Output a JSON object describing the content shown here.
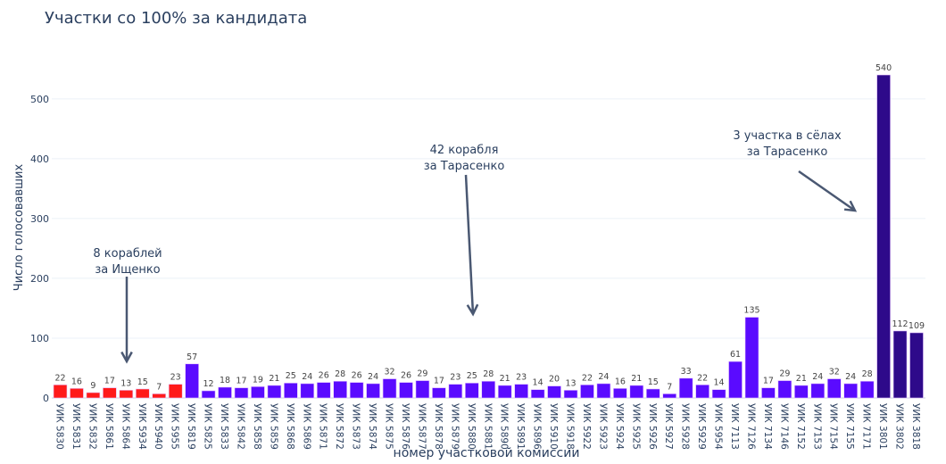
{
  "chart_data": {
    "type": "bar",
    "title": "Участки со 100% за кандидата",
    "xlabel": "номер участковой комиссии",
    "ylabel": "Число голосовавших",
    "ylim": [
      0,
      540
    ],
    "yticks": [
      0,
      100,
      200,
      300,
      400,
      500
    ],
    "grid": true,
    "colors": {
      "Ищенко": "#ff1a1a",
      "Тарасенко": "#5a0bff",
      "Тарасенко (сёла)": "#2e0a8a"
    },
    "categories": [
      "УИК 5830",
      "УИК 5831",
      "УИК 5832",
      "УИК 5861",
      "УИК 5864",
      "УИК 5934",
      "УИК 5940",
      "УИК 5955",
      "УИК 5819",
      "УИК 5825",
      "УИК 5833",
      "УИК 5842",
      "УИК 5858",
      "УИК 5859",
      "УИК 5868",
      "УИК 5869",
      "УИК 5871",
      "УИК 5872",
      "УИК 5873",
      "УИК 5874",
      "УИК 5875",
      "УИК 5876",
      "УИК 5877",
      "УИК 5878",
      "УИК 5879",
      "УИК 5880",
      "УИК 5881",
      "УИК 5890",
      "УИК 5891",
      "УИК 5896",
      "УИК 5910",
      "УИК 5918",
      "УИК 5922",
      "УИК 5923",
      "УИК 5924",
      "УИК 5925",
      "УИК 5926",
      "УИК 5927",
      "УИК 5928",
      "УИК 5929",
      "УИК 5954",
      "УИК 7113",
      "УИК 7126",
      "УИК 7134",
      "УИК 7146",
      "УИК 7152",
      "УИК 7153",
      "УИК 7154",
      "УИК 7155",
      "УИК 7171",
      "УИК 3801",
      "УИК 3802",
      "УИК 3818"
    ],
    "values": [
      22,
      16,
      9,
      17,
      13,
      15,
      7,
      23,
      57,
      12,
      18,
      17,
      19,
      21,
      25,
      24,
      26,
      28,
      26,
      24,
      32,
      26,
      29,
      17,
      23,
      25,
      28,
      21,
      23,
      14,
      20,
      13,
      22,
      24,
      16,
      21,
      15,
      7,
      33,
      22,
      14,
      61,
      135,
      17,
      29,
      21,
      24,
      32,
      24,
      28,
      540,
      112,
      109
    ],
    "groups": [
      "Ищенко",
      "Ищенко",
      "Ищенко",
      "Ищенко",
      "Ищенко",
      "Ищенко",
      "Ищенко",
      "Ищенко",
      "Тарасенко",
      "Тарасенко",
      "Тарасенко",
      "Тарасенко",
      "Тарасенко",
      "Тарасенко",
      "Тарасенко",
      "Тарасенко",
      "Тарасенко",
      "Тарасенко",
      "Тарасенко",
      "Тарасенко",
      "Тарасенко",
      "Тарасенко",
      "Тарасенко",
      "Тарасенко",
      "Тарасенко",
      "Тарасенко",
      "Тарасенко",
      "Тарасенко",
      "Тарасенко",
      "Тарасенко",
      "Тарасенко",
      "Тарасенко",
      "Тарасенко",
      "Тарасенко",
      "Тарасенко",
      "Тарасенко",
      "Тарасенко",
      "Тарасенко",
      "Тарасенко",
      "Тарасенко",
      "Тарасенко",
      "Тарасенко",
      "Тарасенко",
      "Тарасенко",
      "Тарасенко",
      "Тарасенко",
      "Тарасенко",
      "Тарасенко",
      "Тарасенко",
      "Тарасенко",
      "Тарасенко (сёла)",
      "Тарасенко (сёла)",
      "Тарасенко (сёла)"
    ],
    "annotations": [
      {
        "lines": [
          "8 кораблей",
          "за Ищенко"
        ],
        "target": "УИК 5864"
      },
      {
        "lines": [
          "42 корабля",
          "за Тарасенко"
        ],
        "target": "УИК 5880"
      },
      {
        "lines": [
          "3 участка в сёлах",
          "за Тарасенко"
        ],
        "target": "УИК 3801"
      }
    ]
  }
}
